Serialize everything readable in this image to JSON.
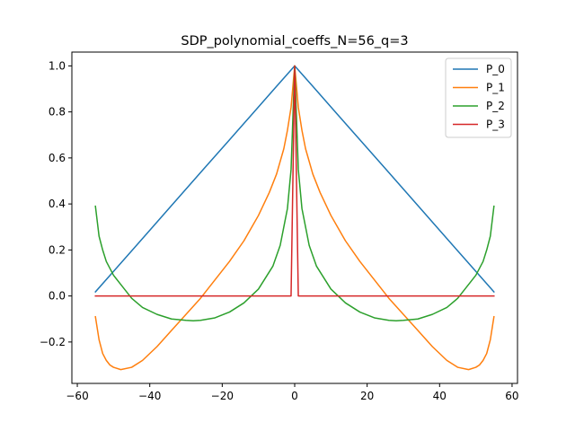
{
  "chart_data": {
    "type": "line",
    "title": "SDP_polynomial_coeffs_N=56_q=3",
    "xlabel": "",
    "ylabel": "",
    "xlim": [
      -61.5,
      61.5
    ],
    "ylim": [
      -0.38,
      1.06
    ],
    "xticks": [
      -60,
      -40,
      -20,
      0,
      20,
      40,
      60
    ],
    "xtick_labels": [
      "−60",
      "−40",
      "−20",
      "0",
      "20",
      "40",
      "60"
    ],
    "yticks": [
      -0.2,
      0.0,
      0.2,
      0.4,
      0.6,
      0.8,
      1.0
    ],
    "ytick_labels": [
      "−0.2",
      "0.0",
      "0.2",
      "0.4",
      "0.6",
      "0.8",
      "1.0"
    ],
    "grid": false,
    "legend_position": "upper right",
    "series": [
      {
        "name": "P_0",
        "color": "#1f77b4",
        "x": [
          -55,
          -45,
          -35,
          -25,
          -15,
          -5,
          0,
          5,
          15,
          25,
          35,
          45,
          55
        ],
        "y": [
          0.018,
          0.196,
          0.375,
          0.554,
          0.732,
          0.911,
          1.0,
          0.911,
          0.732,
          0.554,
          0.375,
          0.196,
          0.018
        ]
      },
      {
        "name": "P_1",
        "color": "#ff7f0e",
        "x": [
          -55,
          -54,
          -53,
          -52,
          -51,
          -50,
          -48,
          -45,
          -42,
          -38,
          -34,
          -30,
          -26,
          -22,
          -18,
          -14,
          -10,
          -7,
          -5,
          -3,
          -2,
          -1,
          0,
          1,
          2,
          3,
          5,
          7,
          10,
          14,
          18,
          22,
          26,
          30,
          34,
          38,
          42,
          45,
          48,
          50,
          51,
          52,
          53,
          54,
          55
        ],
        "y": [
          -0.09,
          -0.19,
          -0.25,
          -0.28,
          -0.3,
          -0.31,
          -0.32,
          -0.31,
          -0.28,
          -0.22,
          -0.15,
          -0.08,
          -0.01,
          0.07,
          0.15,
          0.24,
          0.35,
          0.45,
          0.53,
          0.64,
          0.72,
          0.82,
          1.0,
          0.82,
          0.72,
          0.64,
          0.53,
          0.45,
          0.35,
          0.24,
          0.15,
          0.07,
          -0.01,
          -0.08,
          -0.15,
          -0.22,
          -0.28,
          -0.31,
          -0.32,
          -0.31,
          -0.3,
          -0.28,
          -0.25,
          -0.19,
          -0.09
        ]
      },
      {
        "name": "P_2",
        "color": "#2ca02c",
        "x": [
          -55,
          -54,
          -53,
          -52,
          -50,
          -48,
          -45,
          -42,
          -38,
          -34,
          -30,
          -28,
          -26,
          -22,
          -18,
          -14,
          -10,
          -6,
          -4,
          -2,
          -1,
          0,
          1,
          2,
          4,
          6,
          10,
          14,
          18,
          22,
          26,
          28,
          30,
          34,
          38,
          42,
          45,
          48,
          50,
          52,
          53,
          54,
          55
        ],
        "y": [
          0.39,
          0.26,
          0.2,
          0.15,
          0.09,
          0.05,
          -0.01,
          -0.05,
          -0.08,
          -0.1,
          -0.106,
          -0.108,
          -0.106,
          -0.095,
          -0.07,
          -0.03,
          0.03,
          0.13,
          0.22,
          0.38,
          0.55,
          1.0,
          0.55,
          0.38,
          0.22,
          0.13,
          0.03,
          -0.03,
          -0.07,
          -0.095,
          -0.106,
          -0.108,
          -0.106,
          -0.1,
          -0.08,
          -0.05,
          -0.01,
          0.05,
          0.09,
          0.15,
          0.2,
          0.26,
          0.39
        ]
      },
      {
        "name": "P_3",
        "color": "#d62728",
        "x": [
          -55,
          -1,
          0,
          1,
          55
        ],
        "y": [
          0.0,
          0.0,
          1.0,
          0.0,
          0.0
        ]
      }
    ]
  }
}
